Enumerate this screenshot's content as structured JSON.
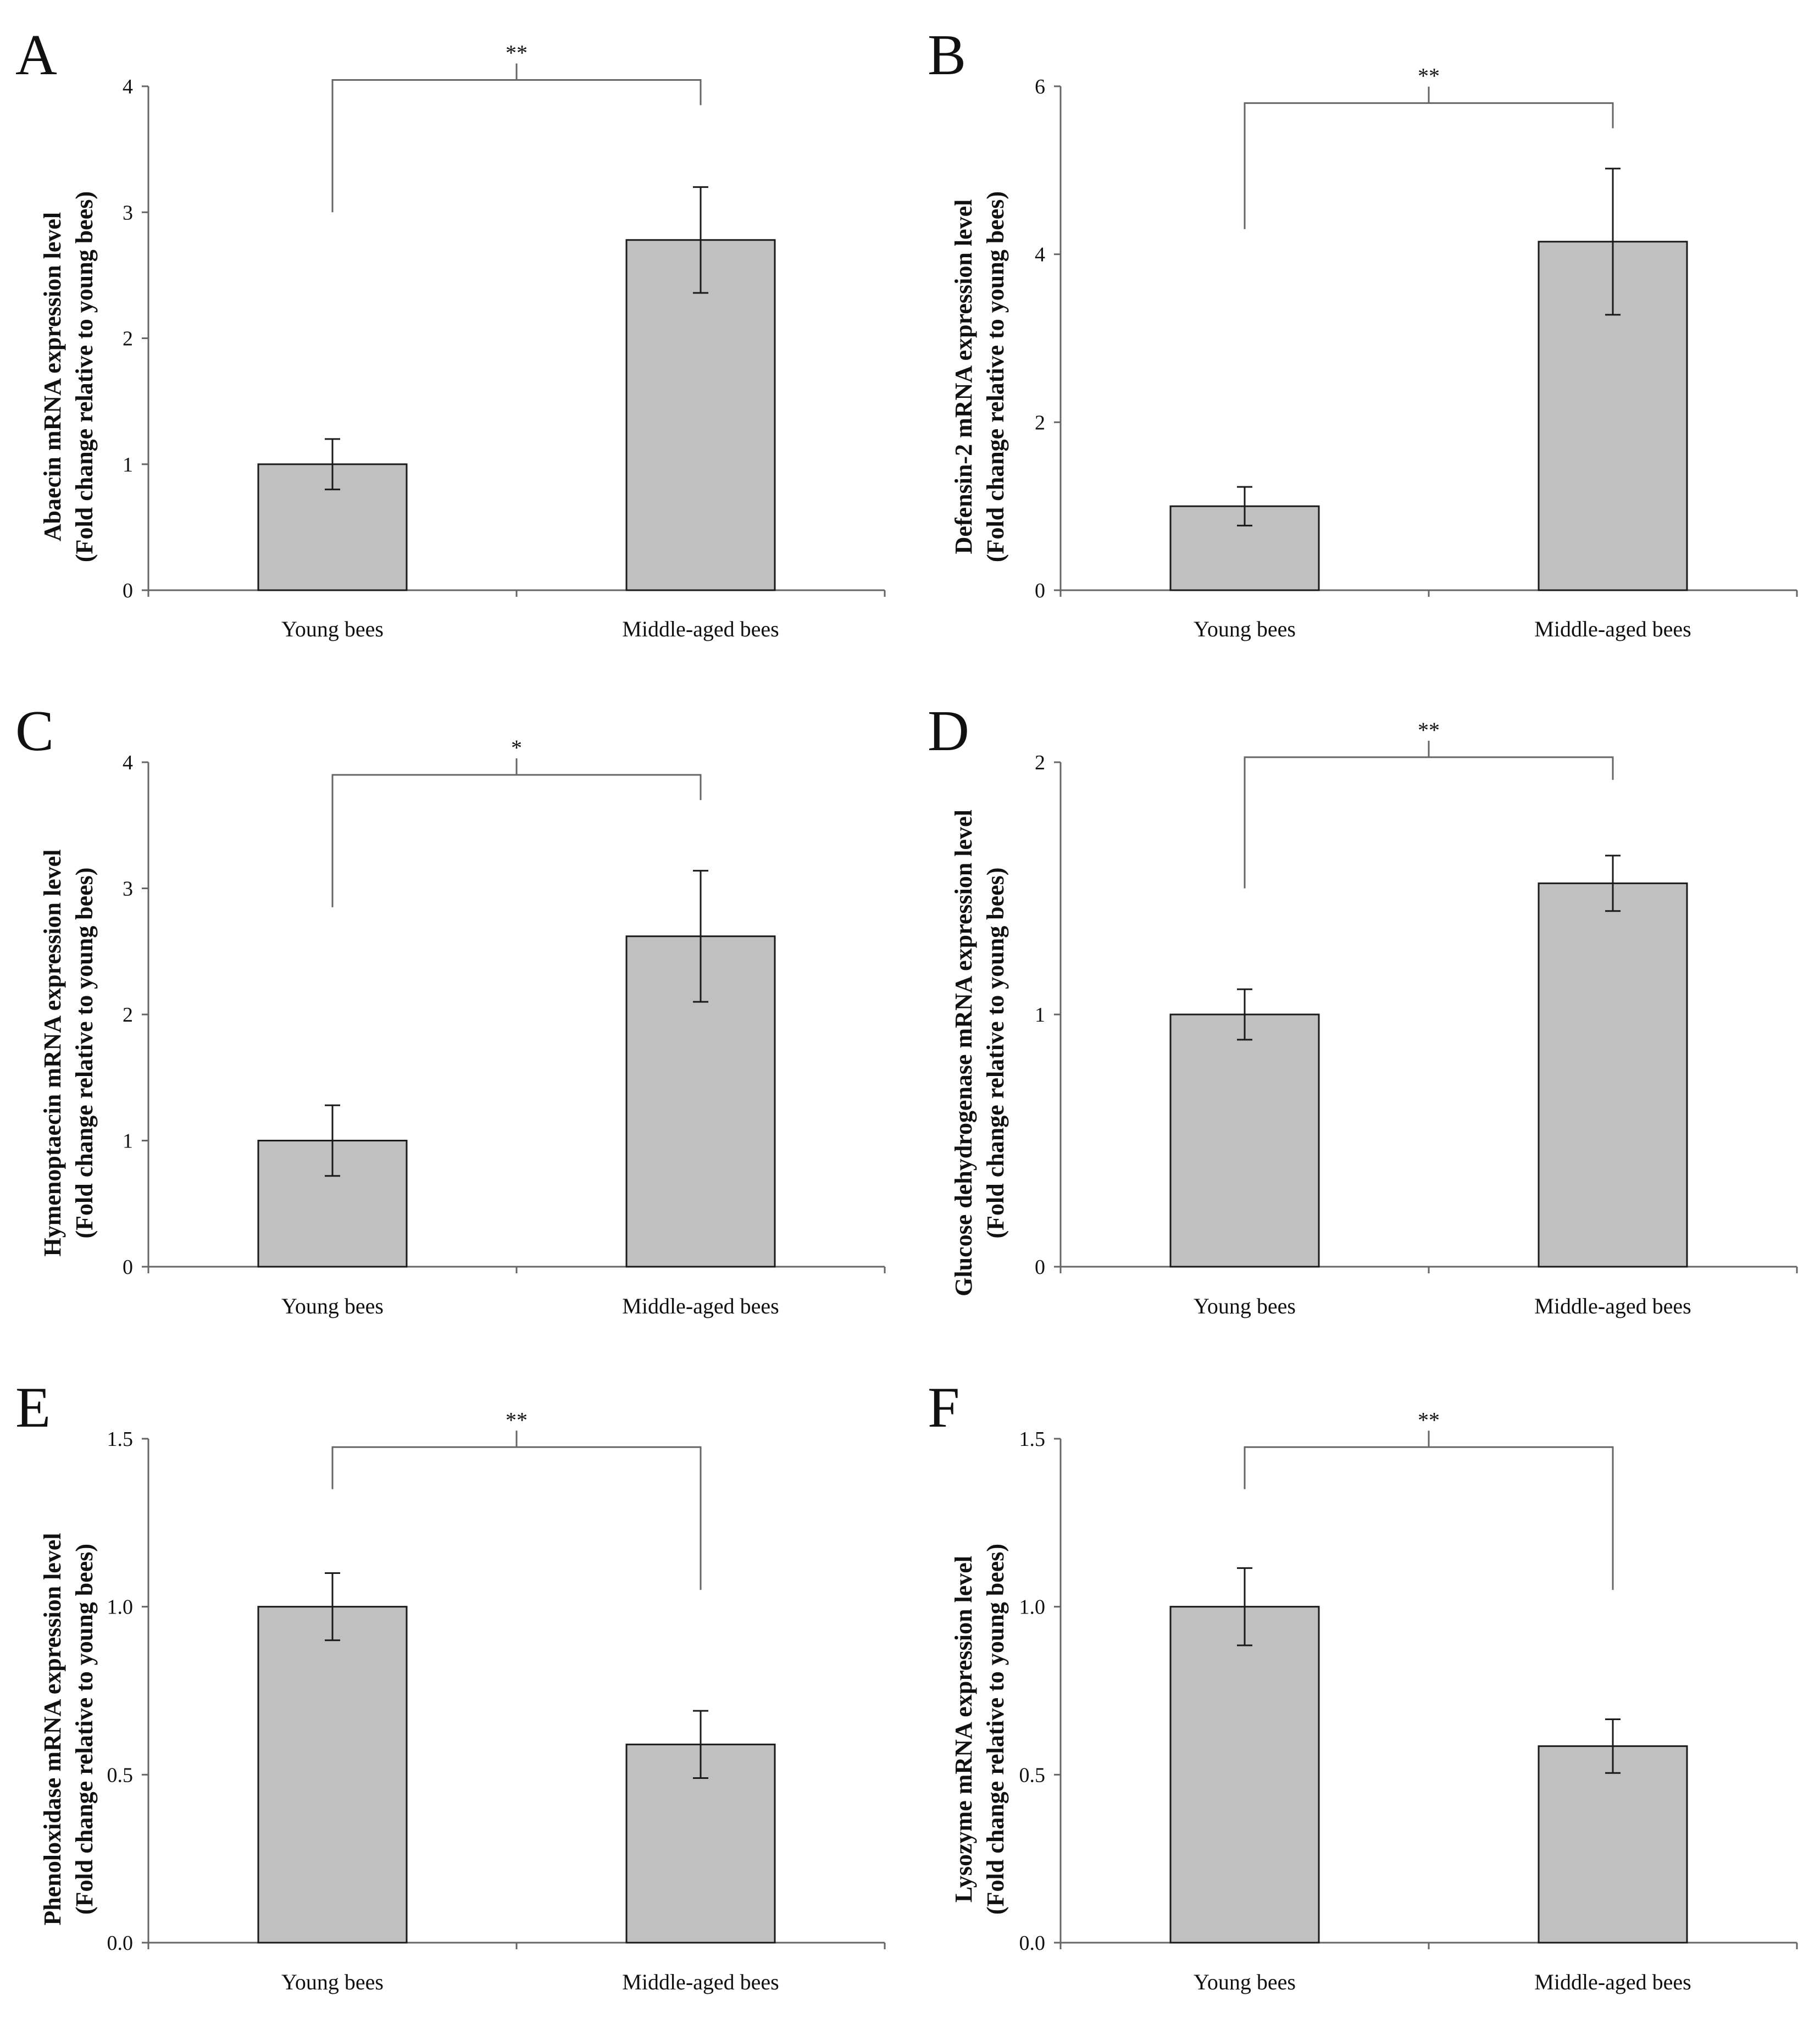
{
  "figure": {
    "colors": {
      "bar_fill": "#c0c0c0",
      "bar_stroke": "#1a1a1a",
      "axis": "#666666",
      "text": "#111111"
    }
  },
  "chart_data": [
    {
      "panel": "A",
      "type": "bar",
      "categories": [
        "Young bees",
        "Middle-aged bees"
      ],
      "values": [
        1.0,
        2.78
      ],
      "errors": [
        0.2,
        0.42
      ],
      "ylim": [
        0,
        4
      ],
      "yticks": [
        "0",
        "1",
        "2",
        "3",
        "4"
      ],
      "ytick_values": [
        0,
        1,
        2,
        3,
        4
      ],
      "ylabel_line1": "Abaecin mRNA expression level",
      "ylabel_line2": "(Fold change relative to young bees)",
      "significance": "**",
      "bracket_y": 4.05,
      "bracket_left_end": 3.0,
      "bracket_right_end": 3.85
    },
    {
      "panel": "B",
      "type": "bar",
      "categories": [
        "Young bees",
        "Middle-aged bees"
      ],
      "values": [
        1.0,
        4.15
      ],
      "errors": [
        0.23,
        0.87
      ],
      "ylim": [
        0,
        6
      ],
      "yticks": [
        "0",
        "2",
        "4",
        "6"
      ],
      "ytick_values": [
        0,
        2,
        4,
        6
      ],
      "ylabel_line1": "Defensin-2 mRNA expression level",
      "ylabel_line2": "(Fold change relative to young bees)",
      "significance": "**",
      "bracket_y": 5.8,
      "bracket_left_end": 4.3,
      "bracket_right_end": 5.5
    },
    {
      "panel": "C",
      "type": "bar",
      "categories": [
        "Young bees",
        "Middle-aged bees"
      ],
      "values": [
        1.0,
        2.62
      ],
      "errors": [
        0.28,
        0.52
      ],
      "ylim": [
        0,
        4
      ],
      "yticks": [
        "0",
        "1",
        "2",
        "3",
        "4"
      ],
      "ytick_values": [
        0,
        1,
        2,
        3,
        4
      ],
      "ylabel_line1": "Hymenoptaecin mRNA expression level",
      "ylabel_line2": "(Fold change relative to young bees)",
      "significance": "*",
      "bracket_y": 3.9,
      "bracket_left_end": 2.85,
      "bracket_right_end": 3.7
    },
    {
      "panel": "D",
      "type": "bar",
      "categories": [
        "Young bees",
        "Middle-aged bees"
      ],
      "values": [
        1.0,
        1.52
      ],
      "errors": [
        0.1,
        0.11
      ],
      "ylim": [
        0,
        2
      ],
      "yticks": [
        "0",
        "1",
        "2"
      ],
      "ytick_values": [
        0,
        1,
        2
      ],
      "ylabel_line1": "Glucose dehydrogenase mRNA expression level",
      "ylabel_line2": "(Fold change relative to young bees)",
      "significance": "**",
      "bracket_y": 2.02,
      "bracket_left_end": 1.5,
      "bracket_right_end": 1.93
    },
    {
      "panel": "E",
      "type": "bar",
      "categories": [
        "Young bees",
        "Middle-aged bees"
      ],
      "values": [
        1.0,
        0.59
      ],
      "errors": [
        0.1,
        0.1
      ],
      "ylim": [
        0,
        1.5
      ],
      "yticks": [
        "0.0",
        "0.5",
        "1.0",
        "1.5"
      ],
      "ytick_values": [
        0,
        0.5,
        1.0,
        1.5
      ],
      "ylabel_line1": "Phenoloxidase mRNA expression level",
      "ylabel_line2": "(Fold change relative to young bees)",
      "significance": "**",
      "bracket_y": 1.475,
      "bracket_left_end": 1.35,
      "bracket_right_end": 1.05
    },
    {
      "panel": "F",
      "type": "bar",
      "categories": [
        "Young bees",
        "Middle-aged bees"
      ],
      "values": [
        1.0,
        0.585
      ],
      "errors": [
        0.115,
        0.08
      ],
      "ylim": [
        0,
        1.5
      ],
      "yticks": [
        "0.0",
        "0.5",
        "1.0",
        "1.5"
      ],
      "ytick_values": [
        0,
        0.5,
        1.0,
        1.5
      ],
      "ylabel_line1": "Lysozyme mRNA expression level",
      "ylabel_line2": "(Fold change relative to young bees)",
      "significance": "**",
      "bracket_y": 1.475,
      "bracket_left_end": 1.35,
      "bracket_right_end": 1.05
    }
  ]
}
